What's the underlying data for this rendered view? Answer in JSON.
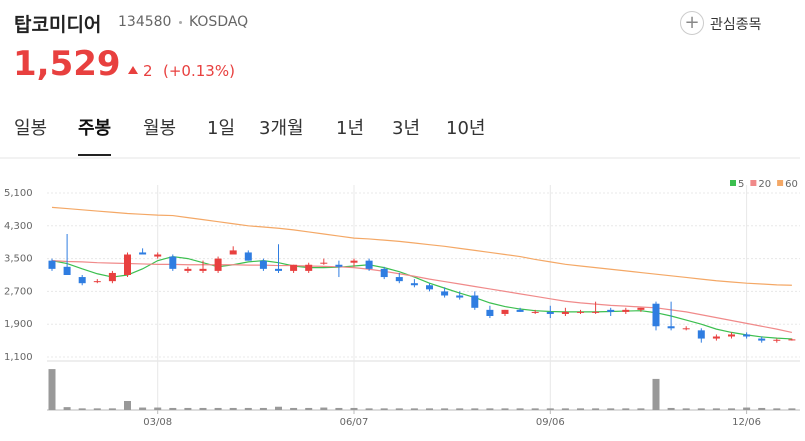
{
  "header": {
    "name": "탑코미디어",
    "code": "134580",
    "market": "KOSDAQ",
    "watch_button": "관심종목",
    "price": "1,529",
    "change": "2",
    "change_pct": "(+0.13%)"
  },
  "tabs": [
    "일봉",
    "주봉",
    "월봉",
    "1일",
    "3개월",
    "1년",
    "3년",
    "10년"
  ],
  "active_tab": 1,
  "chart_data": {
    "type": "candlestick",
    "categories": [
      null,
      null,
      null,
      null,
      null,
      null,
      null,
      "03/08",
      null,
      null,
      null,
      null,
      null,
      null,
      null,
      null,
      null,
      null,
      null,
      null,
      "06/07",
      null,
      null,
      null,
      null,
      null,
      null,
      null,
      null,
      null,
      null,
      null,
      null,
      "09/06",
      null,
      null,
      null,
      null,
      null,
      null,
      null,
      null,
      null,
      null,
      null,
      null,
      "12/06",
      null,
      null,
      null
    ],
    "open": [
      3450,
      3300,
      3050,
      2950,
      2950,
      3100,
      3650,
      3550,
      3550,
      3200,
      3200,
      3200,
      3600,
      3650,
      3450,
      3250,
      3200,
      3200,
      3400,
      3350,
      3400,
      3450,
      3250,
      3050,
      2900,
      2850,
      2700,
      2600,
      2600,
      2250,
      2150,
      2250,
      2200,
      2200,
      2150,
      2200,
      2200,
      2250,
      2200,
      2250,
      2400,
      1850,
      1800,
      1750,
      1550,
      1600,
      1650,
      1550,
      1500,
      1520
    ],
    "high": [
      3500,
      4100,
      3100,
      3000,
      3200,
      3650,
      3750,
      3650,
      3600,
      3300,
      3450,
      3550,
      3800,
      3700,
      3500,
      3850,
      3350,
      3400,
      3500,
      3450,
      3500,
      3500,
      3300,
      3150,
      3000,
      2900,
      2800,
      2700,
      2700,
      2350,
      2250,
      2300,
      2250,
      2350,
      2300,
      2250,
      2450,
      2300,
      2300,
      2300,
      2450,
      2450,
      1850,
      1800,
      1650,
      1700,
      1700,
      1600,
      1550,
      1550
    ],
    "low": [
      3200,
      3100,
      2850,
      2900,
      2900,
      3050,
      3600,
      3500,
      3200,
      3150,
      3150,
      3150,
      3600,
      3450,
      3200,
      3150,
      3150,
      3150,
      3350,
      3050,
      3300,
      3200,
      3000,
      2900,
      2800,
      2700,
      2550,
      2500,
      2250,
      2050,
      2100,
      2200,
      2150,
      2050,
      2100,
      2150,
      2150,
      2100,
      2150,
      2200,
      1750,
      1750,
      1750,
      1450,
      1500,
      1550,
      1550,
      1450,
      1450,
      1500
    ],
    "close": [
      3250,
      3100,
      2900,
      2950,
      3150,
      3600,
      3600,
      3600,
      3250,
      3250,
      3250,
      3500,
      3700,
      3450,
      3250,
      3200,
      3350,
      3350,
      3400,
      3300,
      3450,
      3250,
      3050,
      2950,
      2850,
      2750,
      2600,
      2550,
      2300,
      2100,
      2250,
      2200,
      2200,
      2150,
      2200,
      2200,
      2200,
      2200,
      2250,
      2300,
      1850,
      1800,
      1800,
      1550,
      1600,
      1650,
      1600,
      1500,
      1520,
      1529
    ],
    "up_color": "#e8403f",
    "down_color": "#2f7de1",
    "volume": [
      1000,
      70,
      40,
      40,
      40,
      220,
      60,
      60,
      50,
      50,
      50,
      50,
      50,
      50,
      50,
      80,
      50,
      50,
      60,
      50,
      50,
      40,
      40,
      40,
      40,
      40,
      40,
      40,
      40,
      40,
      40,
      40,
      40,
      40,
      40,
      40,
      40,
      40,
      40,
      40,
      760,
      50,
      40,
      40,
      40,
      40,
      60,
      50,
      40,
      40
    ],
    "volume_color": "#999999",
    "volume_lim": [
      0,
      1100
    ],
    "series": [
      {
        "name": "5",
        "color": "#3cbf4f",
        "values": [
          3450,
          3380,
          3250,
          3130,
          3050,
          3100,
          3250,
          3450,
          3550,
          3500,
          3400,
          3300,
          3350,
          3420,
          3450,
          3400,
          3320,
          3280,
          3280,
          3290,
          3320,
          3350,
          3280,
          3180,
          3050,
          2900,
          2780,
          2660,
          2550,
          2420,
          2330,
          2270,
          2230,
          2210,
          2200,
          2200,
          2200,
          2210,
          2220,
          2230,
          2180,
          2100,
          2000,
          1900,
          1780,
          1700,
          1640,
          1590,
          1560,
          1540
        ]
      },
      {
        "name": "20",
        "color": "#f08a8a",
        "values": [
          3450,
          3430,
          3420,
          3400,
          3390,
          3380,
          3370,
          3360,
          3360,
          3350,
          3350,
          3350,
          3350,
          3340,
          3340,
          3330,
          3330,
          3320,
          3310,
          3300,
          3280,
          3240,
          3190,
          3130,
          3070,
          3000,
          2940,
          2880,
          2820,
          2760,
          2700,
          2640,
          2580,
          2520,
          2460,
          2420,
          2390,
          2360,
          2340,
          2320,
          2300,
          2250,
          2200,
          2130,
          2060,
          1990,
          1920,
          1850,
          1780,
          1700
        ]
      },
      {
        "name": "60",
        "color": "#f4a866",
        "values": [
          4750,
          4720,
          4690,
          4660,
          4630,
          4600,
          4580,
          4560,
          4550,
          4500,
          4450,
          4400,
          4350,
          4300,
          4270,
          4240,
          4200,
          4150,
          4100,
          4050,
          4000,
          3980,
          3950,
          3920,
          3880,
          3840,
          3800,
          3750,
          3700,
          3650,
          3600,
          3550,
          3480,
          3420,
          3360,
          3320,
          3280,
          3240,
          3200,
          3160,
          3120,
          3080,
          3040,
          3000,
          2960,
          2930,
          2900,
          2880,
          2860,
          2850
        ]
      }
    ],
    "ylim": [
      1100,
      5100
    ],
    "yticks": [
      {
        "value": 5100,
        "label": "5,100"
      },
      {
        "value": 4300,
        "label": "4,300"
      },
      {
        "value": 3500,
        "label": "3,500"
      },
      {
        "value": 2700,
        "label": "2,700"
      },
      {
        "value": 1900,
        "label": "1,900"
      },
      {
        "value": 1100,
        "label": "1,100"
      }
    ],
    "grid": true
  }
}
